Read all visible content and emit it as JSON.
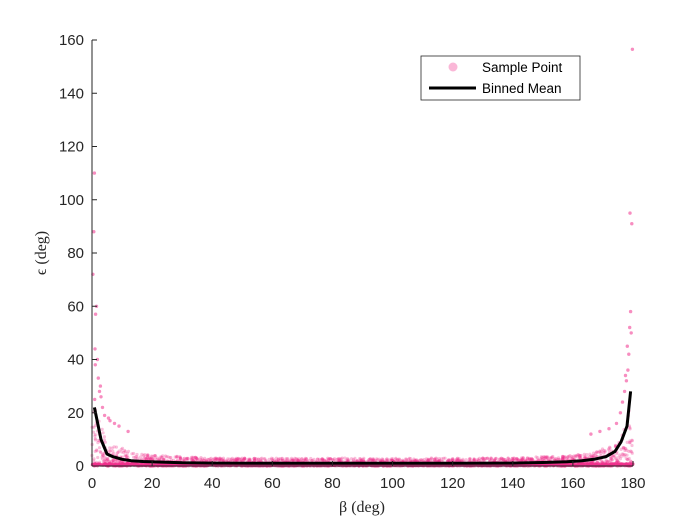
{
  "chart_data": {
    "type": "scatter",
    "xlabel": "β (deg)",
    "ylabel": "ϵ (deg)",
    "xlim": [
      0,
      180
    ],
    "ylim": [
      0,
      160
    ],
    "xticks": [
      0,
      20,
      40,
      60,
      80,
      100,
      120,
      140,
      160,
      180
    ],
    "yticks": [
      0,
      20,
      40,
      60,
      80,
      100,
      120,
      140,
      160
    ],
    "grid": false,
    "legend_position": "top-right",
    "colors": {
      "sample": "#f0308c",
      "mean": "#000000",
      "axis": "#262626"
    },
    "legend": [
      {
        "label": "Sample Point",
        "marker": "dot"
      },
      {
        "label": "Binned Mean",
        "marker": "line"
      }
    ],
    "series": [
      {
        "name": "Binned Mean",
        "x": [
          0.8,
          3,
          5,
          7,
          10,
          13,
          17,
          22,
          30,
          40,
          60,
          80,
          100,
          120,
          140,
          150,
          158,
          163,
          167,
          171,
          174,
          176,
          178,
          179.2
        ],
        "y": [
          22,
          10,
          4.5,
          3.5,
          2.5,
          2,
          1.7,
          1.5,
          1.2,
          1.1,
          1.0,
          1.0,
          1.0,
          1.0,
          1.1,
          1.3,
          1.6,
          2.0,
          2.5,
          3.5,
          5.5,
          9,
          15,
          28
        ]
      },
      {
        "name": "Sample Point",
        "x": [
          0.3,
          0.6,
          0.8,
          1.0,
          1.2,
          1.5,
          1.8,
          2.1,
          2.5,
          3.0,
          3.5,
          4.2,
          6,
          9,
          12,
          1.1,
          0.9,
          2.8,
          5.5,
          7.5,
          176.5,
          177.2,
          177.8,
          178.3,
          178.6,
          178.9,
          179.2,
          179.4,
          179.6,
          179.8,
          175.8,
          174.5,
          172,
          169,
          166,
          178.1,
          179.0,
          177.5
        ],
        "y": [
          72,
          88,
          110,
          44,
          57,
          60,
          40,
          33,
          28,
          26,
          22,
          19,
          17,
          15,
          13,
          38,
          25,
          30,
          18,
          16,
          24,
          28,
          32,
          36,
          42,
          52,
          58,
          50,
          91,
          156.5,
          20,
          16,
          14,
          13,
          12,
          45,
          95,
          34
        ]
      }
    ]
  }
}
